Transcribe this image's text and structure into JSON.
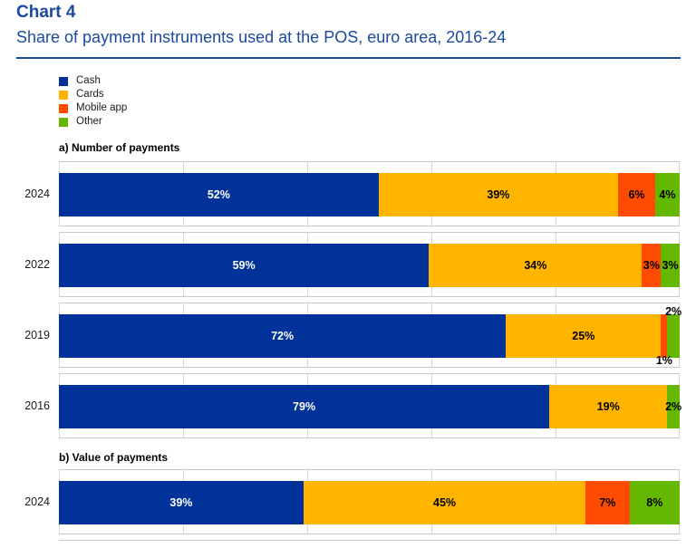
{
  "header": {
    "title": "Chart 4",
    "subtitle": "Share of payment instruments used at the POS, euro area, 2016-24"
  },
  "colors": {
    "title_blue": "#1C4AA0",
    "cash": "#003299",
    "cards": "#FFB400",
    "mobile_app": "#FF4B00",
    "other": "#65B800",
    "gridline": "#D9D9D9",
    "frame_border": "#C9C9C9",
    "label_on_dark": "#FFFFFF",
    "label_on_light": "#000000"
  },
  "legend": {
    "items": [
      {
        "key": "cash",
        "label": "Cash"
      },
      {
        "key": "cards",
        "label": "Cards"
      },
      {
        "key": "mobile_app",
        "label": "Mobile app"
      },
      {
        "key": "other",
        "label": "Other"
      }
    ]
  },
  "chart_data": [
    {
      "type": "bar",
      "stacked": true,
      "orientation": "horizontal",
      "title": "a) Number of payments",
      "unit": "%",
      "xlim": [
        0,
        100
      ],
      "gridline_interval": 20,
      "categories": [
        "2024",
        "2022",
        "2019",
        "2016"
      ],
      "series": [
        {
          "name": "Cash",
          "key": "cash",
          "values": [
            52,
            59,
            72,
            79
          ]
        },
        {
          "name": "Cards",
          "key": "cards",
          "values": [
            39,
            34,
            25,
            19
          ]
        },
        {
          "name": "Mobile app",
          "key": "mobile_app",
          "values": [
            6,
            3,
            1,
            null
          ]
        },
        {
          "name": "Other",
          "key": "other",
          "values": [
            4,
            3,
            2,
            2
          ]
        }
      ],
      "label_positions": {
        "2019.mobile_app": "below",
        "2019.other": "above"
      }
    },
    {
      "type": "bar",
      "stacked": true,
      "orientation": "horizontal",
      "title": "b) Value of payments",
      "unit": "%",
      "xlim": [
        0,
        100
      ],
      "gridline_interval": 20,
      "categories": [
        "2024"
      ],
      "series": [
        {
          "name": "Cash",
          "key": "cash",
          "values": [
            39
          ]
        },
        {
          "name": "Cards",
          "key": "cards",
          "values": [
            45
          ]
        },
        {
          "name": "Mobile app",
          "key": "mobile_app",
          "values": [
            7
          ]
        },
        {
          "name": "Other",
          "key": "other",
          "values": [
            8
          ]
        }
      ],
      "partial_next_row": true
    }
  ]
}
